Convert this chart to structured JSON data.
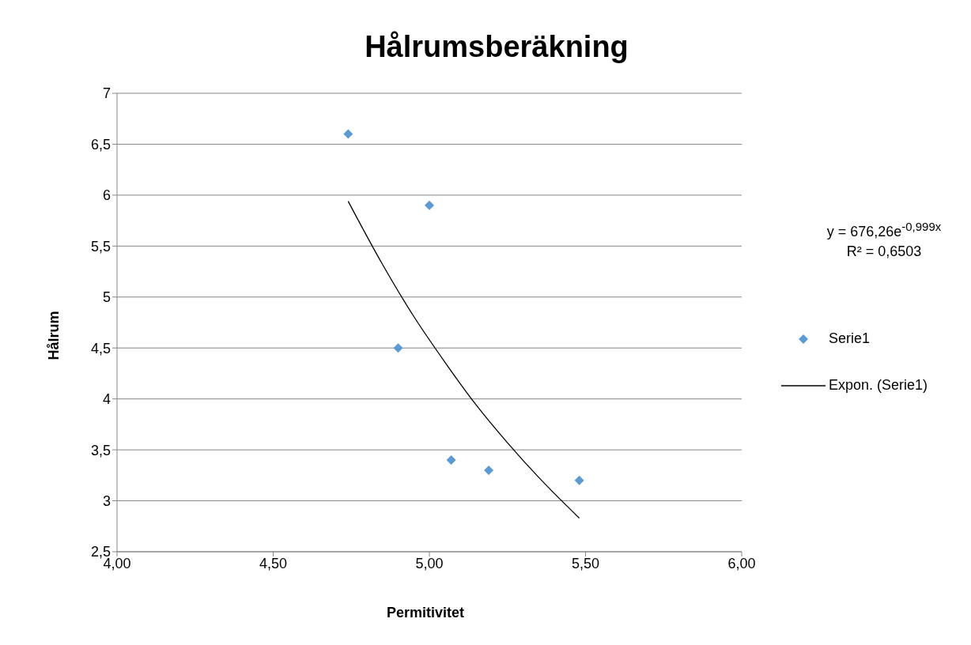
{
  "chart_data": {
    "type": "scatter",
    "title": "Hålrumsberäkning",
    "xlabel": "Permitivitet",
    "ylabel": "Hålrum",
    "xlim": [
      4,
      6
    ],
    "xticks": [
      {
        "value": 4,
        "label": "4,00"
      },
      {
        "value": 4.5,
        "label": "4,50"
      },
      {
        "value": 5,
        "label": "5,00"
      },
      {
        "value": 5.5,
        "label": "5,50"
      },
      {
        "value": 6,
        "label": "6,00"
      }
    ],
    "ylim": [
      2.5,
      7
    ],
    "yticks": [
      {
        "value": 2.5,
        "label": "2,5"
      },
      3,
      {
        "value": 3.5,
        "label": "3,5"
      },
      4,
      {
        "value": 4.5,
        "label": "4,5"
      },
      5,
      {
        "value": 5.5,
        "label": "5,5"
      },
      6,
      {
        "value": 6.5,
        "label": "6,5"
      },
      7
    ],
    "grid": "y",
    "legend": "right",
    "marker": "diamond",
    "series": [
      {
        "name": "Serie1",
        "color": "#5b9bd5",
        "x": [
          4.74,
          5.0,
          4.9,
          5.07,
          5.19,
          5.48
        ],
        "values": [
          6.6,
          5.9,
          4.5,
          3.4,
          3.3,
          3.2
        ]
      },
      {
        "name": "Expon. (Serie1)",
        "type": "line",
        "marker": "none",
        "color": "#000000",
        "x": [
          4.74,
          4.85,
          4.95,
          5.05,
          5.15,
          5.25,
          5.35,
          5.48
        ],
        "values": [
          5.94,
          5.32,
          4.81,
          4.36,
          3.94,
          3.57,
          3.23,
          2.83
        ]
      }
    ],
    "annotations": [
      "y = 676,26e$^{-0,999x}$",
      "R² = 0,6503"
    ]
  }
}
